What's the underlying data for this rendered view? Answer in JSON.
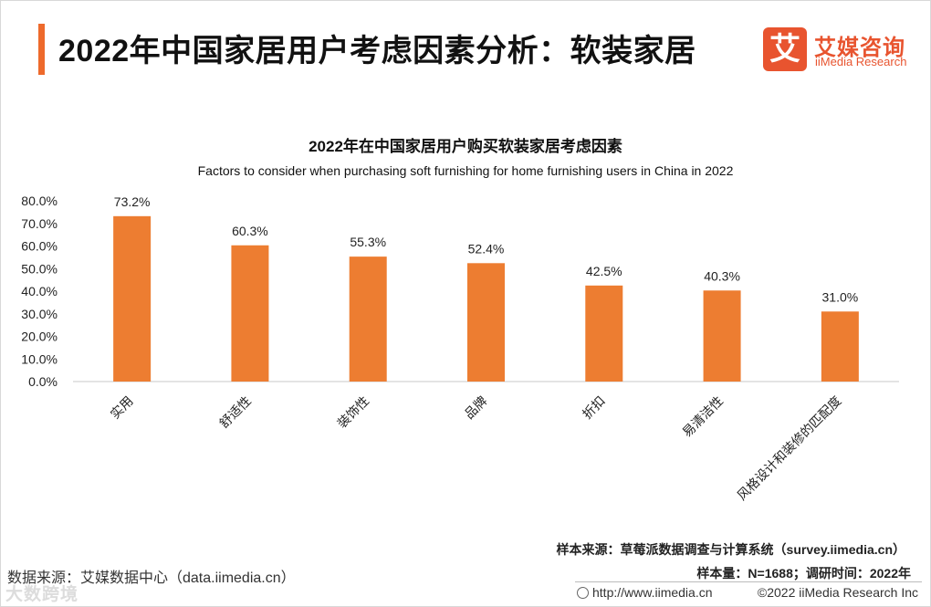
{
  "header": {
    "title": "2022年中国家居用户考虑因素分析：软装家居",
    "logo_mark": "艾",
    "logo_cn": "艾媒咨询",
    "logo_en": "iiMedia Research"
  },
  "chart_data": {
    "type": "bar",
    "title": "2022年在中国家居用户购买软装家居考虑因素",
    "subtitle": "Factors to consider when purchasing soft furnishing for home furnishing users in China in 2022",
    "categories": [
      "实用",
      "舒适性",
      "装饰性",
      "品牌",
      "折扣",
      "易清洁性",
      "风格设计和装修的匹配度"
    ],
    "values": [
      73.2,
      60.3,
      55.3,
      52.4,
      42.5,
      40.3,
      31.0
    ],
    "value_labels": [
      "73.2%",
      "60.3%",
      "55.3%",
      "52.4%",
      "42.5%",
      "40.3%",
      "31.0%"
    ],
    "ylim": [
      0,
      80
    ],
    "yticks": [
      "0.0%",
      "10.0%",
      "20.0%",
      "30.0%",
      "40.0%",
      "50.0%",
      "60.0%",
      "70.0%",
      "80.0%"
    ],
    "xlabel": "",
    "ylabel": "",
    "grid": false,
    "bar_color": "#ed7d31"
  },
  "footer": {
    "sample_source": "样本来源：草莓派数据调查与计算系统（survey.iimedia.cn）",
    "data_source": "数据来源：艾媒数据中心（data.iimedia.cn）",
    "sample_size": "样本量：N=1688；调研时间：2022年",
    "url": "http://www.iimedia.cn",
    "copyright": "©2022  iiMedia Research  Inc",
    "watermark": "大数跨境"
  },
  "colors": {
    "accent": "#ee6a2c",
    "brand": "#e8542f",
    "bar": "#ed7d31"
  }
}
